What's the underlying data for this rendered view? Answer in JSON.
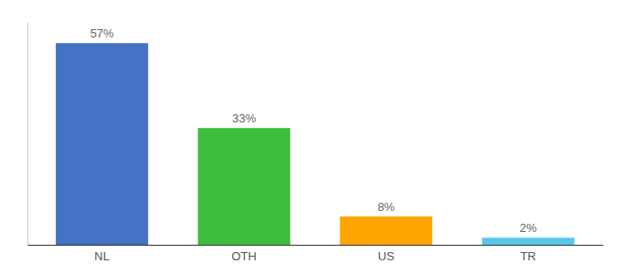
{
  "chart_data": {
    "type": "bar",
    "categories": [
      "NL",
      "OTH",
      "US",
      "TR"
    ],
    "values": [
      57,
      33,
      8,
      2
    ],
    "value_labels": [
      "57%",
      "33%",
      "8%",
      "2%"
    ],
    "colors": [
      "#4472C4",
      "#3DBD3D",
      "#FFA500",
      "#56C8E8"
    ],
    "ylim": [
      0,
      63
    ],
    "data_labels": true,
    "tick_labels": "x"
  }
}
